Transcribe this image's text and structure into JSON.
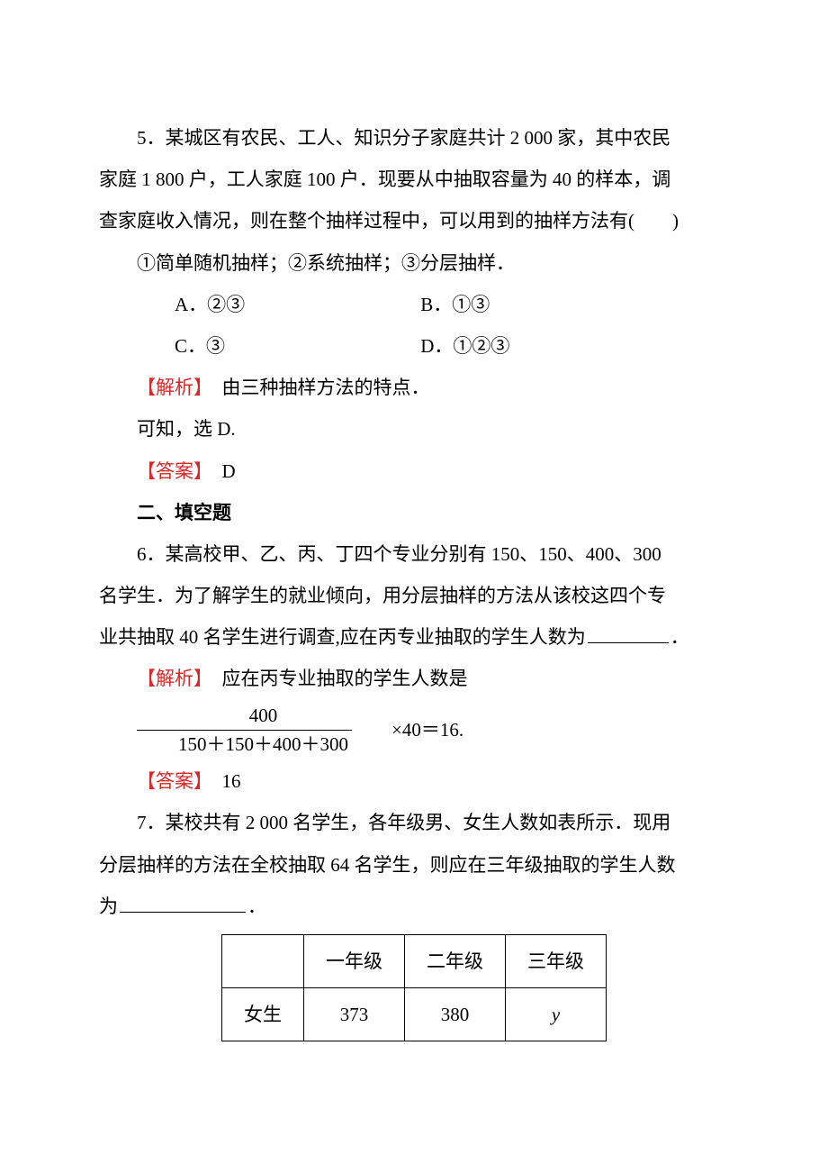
{
  "q5": {
    "text_l1": "5．某城区有农民、工人、知识分子家庭共计 2 000 家，其中农民",
    "text_l2": "家庭 1 800 户，工人家庭 100 户．现要从中抽取容量为 40 的样本，调",
    "text_l3": "查家庭收入情况，则在整个抽样过程中，可以用到的抽样方法有(　　)",
    "methods": "①简单随机抽样；②系统抽样；③分层抽样．",
    "optA": "A．②③",
    "optB": "B．①③",
    "optC": "C．③",
    "optD": "D．①②③",
    "analysis_label": "【解析】",
    "analysis_text": "　由三种抽样方法的特点．",
    "analysis_l2": "可知，选 D.",
    "answer_label": "【答案】",
    "answer_text": "　D"
  },
  "section2": "二、填空题",
  "q6": {
    "text_l1": "6．某高校甲、乙、丙、丁四个专业分别有 150、150、400、300",
    "text_l2": "名学生．为了解学生的就业倾向，用分层抽样的方法从该校这四个专",
    "text_l3a": "业共抽取 40 名学生进行调查,应在丙专业抽取的学生人数为",
    "text_l3b": "．",
    "analysis_label": "【解析】",
    "analysis_text": "　应在丙专业抽取的学生人数是",
    "frac_num": "400",
    "frac_den": "150＋150＋400＋300",
    "frac_rest": "×40＝16.",
    "answer_label": "【答案】",
    "answer_text": "　16"
  },
  "q7": {
    "text_l1": "7．某校共有 2 000 名学生，各年级男、女生人数如表所示．现用",
    "text_l2": "分层抽样的方法在全校抽取 64 名学生，则应在三年级抽取的学生人数",
    "text_l3a": "为",
    "text_l3b": "．",
    "table": {
      "headers": [
        "",
        "一年级",
        "二年级",
        "三年级"
      ],
      "row1_label": "女生",
      "row1": [
        "373",
        "380",
        "y"
      ]
    }
  }
}
